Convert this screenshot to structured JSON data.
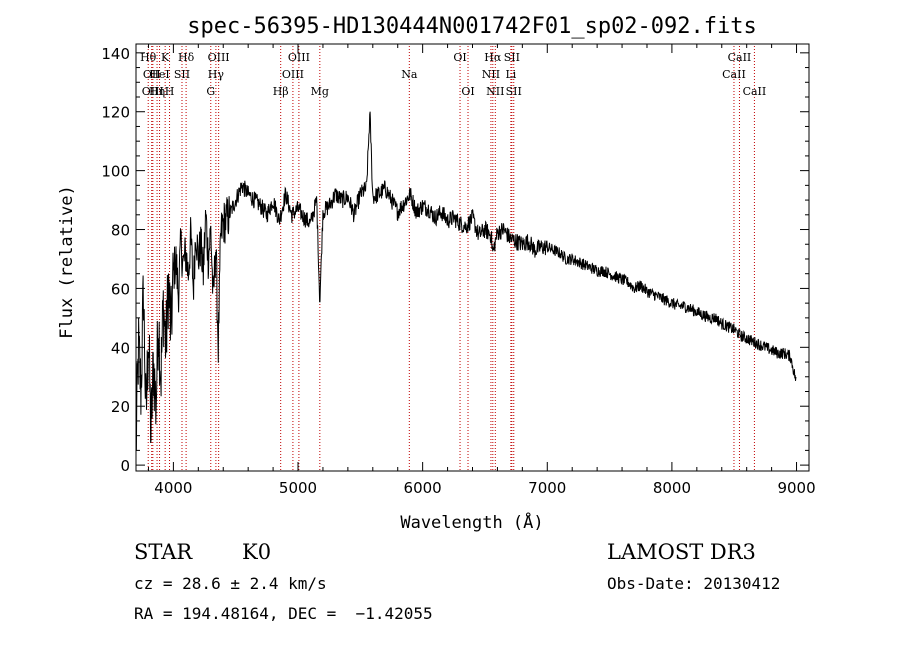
{
  "chart_data": {
    "type": "line",
    "title": "spec-56395-HD130444N001742F01_sp02-092.fits",
    "xlabel": "Wavelength (Å)",
    "ylabel": "Flux (relative)",
    "xlim": [
      3700,
      9100
    ],
    "ylim": [
      -2,
      143
    ],
    "xticks": [
      4000,
      5000,
      6000,
      7000,
      8000,
      9000
    ],
    "yticks": [
      0,
      20,
      40,
      60,
      80,
      100,
      120,
      140
    ],
    "grid": false,
    "line_color": "#000000",
    "marker_color": "#c00000",
    "series": [
      {
        "x": [
          3700,
          3720,
          3740,
          3760,
          3780,
          3800,
          3820,
          3840,
          3860,
          3880,
          3900,
          3920,
          3940,
          3960,
          3980,
          4000,
          4020,
          4040,
          4060,
          4080,
          4100,
          4120,
          4140,
          4160,
          4180,
          4200,
          4220,
          4240,
          4260,
          4280,
          4300,
          4320,
          4340,
          4360,
          4380,
          4400,
          4450,
          4500,
          4550,
          4600,
          4650,
          4700,
          4750,
          4800,
          4850,
          4900,
          4950,
          5000,
          5050,
          5100,
          5150,
          5175,
          5200,
          5250,
          5300,
          5350,
          5400,
          5450,
          5500,
          5550,
          5577,
          5600,
          5650,
          5700,
          5750,
          5800,
          5850,
          5900,
          5950,
          6000,
          6050,
          6100,
          6150,
          6200,
          6250,
          6300,
          6350,
          6400,
          6450,
          6500,
          6550,
          6563,
          6600,
          6650,
          6700,
          6750,
          6800,
          6850,
          6900,
          6950,
          7000,
          7050,
          7100,
          7150,
          7200,
          7250,
          7300,
          7350,
          7400,
          7450,
          7500,
          7550,
          7600,
          7650,
          7700,
          7750,
          7800,
          7850,
          7900,
          7950,
          8000,
          8050,
          8100,
          8150,
          8200,
          8250,
          8300,
          8350,
          8400,
          8450,
          8500,
          8550,
          8600,
          8650,
          8700,
          8750,
          8800,
          8850,
          8900,
          8950,
          9000
        ],
        "y": [
          5,
          40,
          25,
          60,
          15,
          45,
          10,
          35,
          20,
          50,
          30,
          55,
          40,
          62,
          45,
          65,
          70,
          58,
          75,
          68,
          72,
          65,
          78,
          60,
          80,
          70,
          75,
          65,
          85,
          70,
          80,
          55,
          75,
          40,
          78,
          82,
          85,
          90,
          95,
          92,
          90,
          88,
          85,
          90,
          83,
          92,
          85,
          87,
          84,
          82,
          90,
          55,
          86,
          88,
          92,
          90,
          91,
          85,
          92,
          94,
          120,
          91,
          92,
          94,
          90,
          86,
          89,
          92,
          86,
          88,
          87,
          84,
          86,
          83,
          84,
          82,
          81,
          84,
          78,
          80,
          78,
          72,
          79,
          80,
          77,
          76,
          75,
          76,
          73,
          74,
          74,
          73,
          72,
          70,
          70,
          69,
          68,
          67,
          66,
          66,
          65,
          64,
          63,
          62,
          60,
          61,
          59,
          58,
          57,
          56,
          55,
          54,
          54,
          53,
          52,
          51,
          50,
          50,
          48,
          47,
          46,
          44,
          43,
          42,
          41,
          40,
          39,
          38,
          38,
          37,
          28
        ]
      }
    ],
    "line_markers": [
      {
        "x": 3798,
        "label": "Hθ",
        "row": 0
      },
      {
        "x": 3826,
        "label": "OII",
        "row": 1
      },
      {
        "x": 3835,
        "label": "OIII",
        "row": 2
      },
      {
        "x": 3869,
        "label": "Hη",
        "row": 2
      },
      {
        "x": 3889,
        "label": "HeI",
        "row": 1
      },
      {
        "x": 3934,
        "label": "K",
        "row": 0
      },
      {
        "x": 3969,
        "label": "H",
        "row": 2
      },
      {
        "x": 4069,
        "label": "SII",
        "row": 1
      },
      {
        "x": 4102,
        "label": "Hδ",
        "row": 0
      },
      {
        "x": 4300,
        "label": "G",
        "row": 2
      },
      {
        "x": 4341,
        "label": "Hγ",
        "row": 1
      },
      {
        "x": 4363,
        "label": "OIII",
        "row": 0
      },
      {
        "x": 4861,
        "label": "Hβ",
        "row": 2
      },
      {
        "x": 4959,
        "label": "OIII",
        "row": 1
      },
      {
        "x": 5007,
        "label": "OIII",
        "row": 0
      },
      {
        "x": 5175,
        "label": "Mg",
        "row": 2
      },
      {
        "x": 5893,
        "label": "Na",
        "row": 1
      },
      {
        "x": 6300,
        "label": "OI",
        "row": 0
      },
      {
        "x": 6364,
        "label": "OI",
        "row": 2
      },
      {
        "x": 6548,
        "label": "NII",
        "row": 1
      },
      {
        "x": 6563,
        "label": "Hα",
        "row": 0
      },
      {
        "x": 6583,
        "label": "NII",
        "row": 2
      },
      {
        "x": 6708,
        "label": "Li",
        "row": 1
      },
      {
        "x": 6716,
        "label": "SII",
        "row": 0
      },
      {
        "x": 6731,
        "label": "SII",
        "row": 2
      },
      {
        "x": 8498,
        "label": "CaII",
        "row": 1
      },
      {
        "x": 8542,
        "label": "CaII",
        "row": 0
      },
      {
        "x": 8662,
        "label": "CaII",
        "row": 2
      }
    ]
  },
  "info": {
    "class": "STAR",
    "subclass": "K0",
    "survey": "LAMOST DR3",
    "cz": "cz = 28.6 ± 2.4 km/s",
    "obs_date": "Obs-Date: 20130412",
    "radec": "RA = 194.48164, DEC =  −1.42055"
  }
}
